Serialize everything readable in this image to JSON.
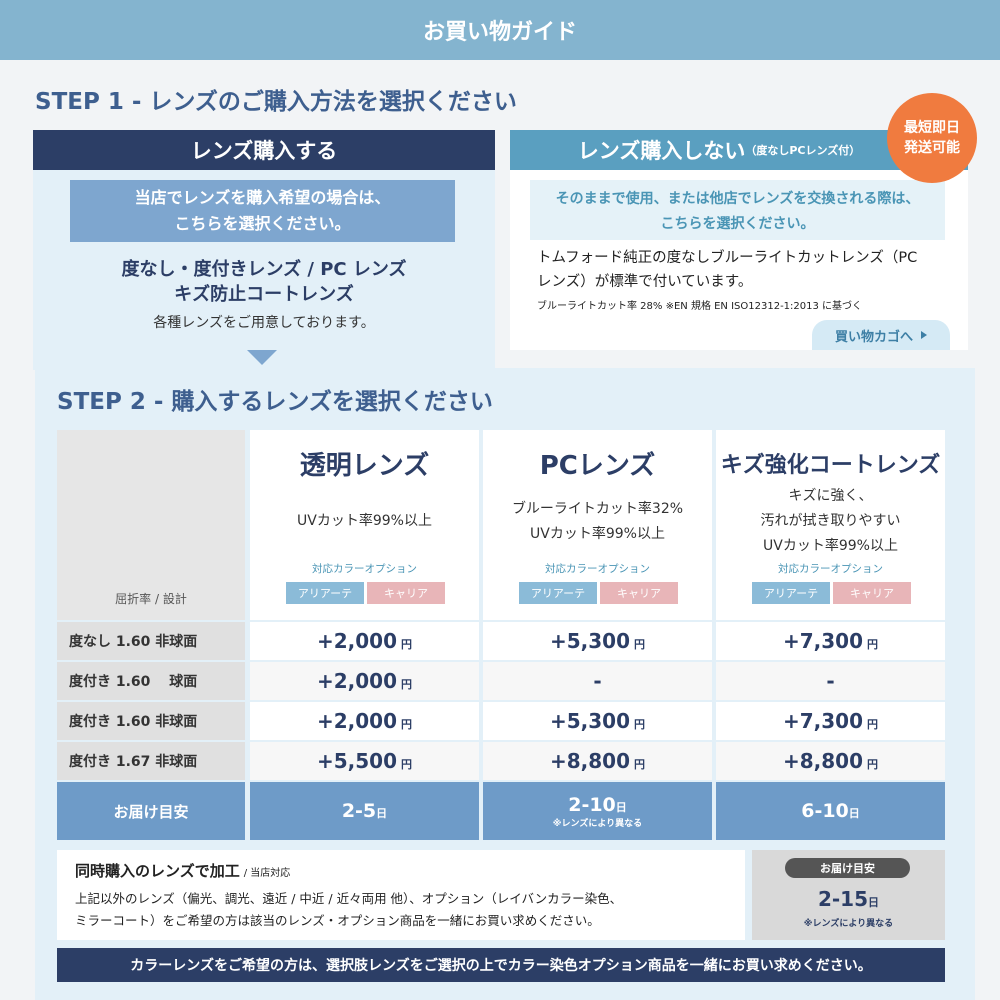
{
  "header": {
    "title": "お買い物ガイド"
  },
  "step1": {
    "title": "STEP 1 - レンズのご購入方法を選択ください",
    "buy": {
      "heading": "レンズ購入する",
      "note": [
        "当店でレンズを購入希望の場合は、",
        "こちらを選択ください。"
      ],
      "lenses": [
        "度なし・度付きレンズ / PC レンズ",
        "キズ防止コートレンズ"
      ],
      "sub": "各種レンズをご用意しております。"
    },
    "nobuy": {
      "heading": "レンズ購入しない",
      "heading_sub": "（度なしPCレンズ付）",
      "badge": [
        "最短即日",
        "発送可能"
      ],
      "note": [
        "そのままで使用、または他店でレンズを交換される際は、",
        "こちらを選択ください。"
      ],
      "desc": [
        "トムフォード純正の度なしブルーライトカットレンズ（PC",
        "レンズ）が標準で付いています。"
      ],
      "small": "ブルーライトカット率 28% ※EN 規格 EN ISO12312-1:2013 に基づく",
      "button": "買い物カゴへ"
    }
  },
  "step2": {
    "title": "STEP 2 - 購入するレンズを選択ください",
    "table": {
      "corner": "屈折率 / 設計",
      "columns": [
        {
          "name": "透明レンズ",
          "features": [
            "UVカット率99%以上"
          ],
          "option_label": "対応カラーオプション",
          "options": [
            "アリアーテ",
            "キャリア"
          ]
        },
        {
          "name": "PCレンズ",
          "features": [
            "ブルーライトカット率32%",
            "UVカット率99%以上"
          ],
          "option_label": "対応カラーオプション",
          "options": [
            "アリアーテ",
            "キャリア"
          ]
        },
        {
          "name": "キズ強化コートレンズ",
          "features": [
            "キズに強く、",
            "汚れが拭き取りやすい",
            "UVカット率99%以上"
          ],
          "option_label": "対応カラーオプション",
          "options": [
            "アリアーテ",
            "キャリア"
          ]
        }
      ],
      "rows": [
        {
          "label": "度なし 1.60 非球面",
          "prices": [
            {
              "amount": "+2,000",
              "unit": "円"
            },
            {
              "amount": "+5,300",
              "unit": "円"
            },
            {
              "amount": "+7,300",
              "unit": "円"
            }
          ]
        },
        {
          "label": "度付き 1.60 　球面",
          "prices": [
            {
              "amount": "+2,000",
              "unit": "円"
            },
            {
              "amount": "-"
            },
            {
              "amount": "-"
            }
          ]
        },
        {
          "label": "度付き 1.60 非球面",
          "prices": [
            {
              "amount": "+2,000",
              "unit": "円"
            },
            {
              "amount": "+5,300",
              "unit": "円"
            },
            {
              "amount": "+7,300",
              "unit": "円"
            }
          ]
        },
        {
          "label": "度付き 1.67 非球面",
          "prices": [
            {
              "amount": "+5,500",
              "unit": "円"
            },
            {
              "amount": "+8,800",
              "unit": "円"
            },
            {
              "amount": "+8,800",
              "unit": "円"
            }
          ]
        }
      ],
      "delivery": {
        "label": "お届け目安",
        "values": [
          {
            "days": "2-5",
            "unit": "日"
          },
          {
            "days": "2-10",
            "unit": "日",
            "note": "※レンズにより異なる"
          },
          {
            "days": "6-10",
            "unit": "日"
          }
        ]
      }
    },
    "processing": {
      "title": "同時購入のレンズで加工",
      "title_sub": "/ 当店対応",
      "text": [
        "上記以外のレンズ（偏光、調光、遠近 / 中近 / 近々両用 他）、オプション（レイバンカラー染色、",
        "ミラーコート）をご希望の方は該当のレンズ・オプション商品を一緒にお買い求めください。"
      ],
      "delivery_label": "お届け目安",
      "days": "2-15",
      "unit": "日",
      "note": "※レンズにより異なる"
    }
  },
  "footer": {
    "text": "カラーレンズをご希望の方は、選択肢レンズをご選択の上でカラー染色オプション商品を一緒にお買い求めください。"
  }
}
